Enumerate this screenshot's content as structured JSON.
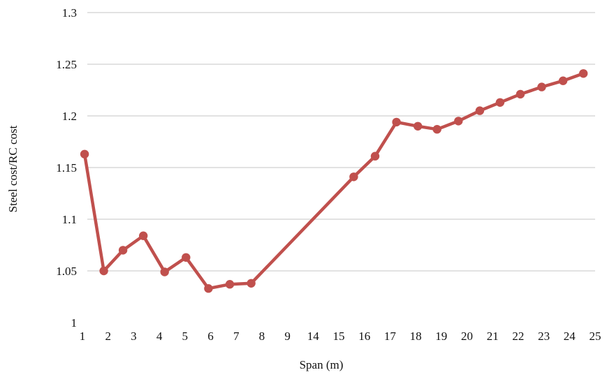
{
  "chart_data": {
    "type": "line",
    "xlabel": "Span (m)",
    "ylabel": "Steel cost/RC cost",
    "ylim": [
      1,
      1.3
    ],
    "y_ticks": [
      "1",
      "1.05",
      "1.1",
      "1.15",
      "1.2",
      "1.25",
      "1.3"
    ],
    "x_ticks": [
      "1",
      "2",
      "3",
      "4",
      "5",
      "6",
      "7",
      "8",
      "9",
      "14",
      "15",
      "16",
      "17",
      "18",
      "19",
      "20",
      "21",
      "22",
      "23",
      "24",
      "25"
    ],
    "grid": "horizontal",
    "colors": {
      "line": "#c0504d",
      "grid": "#d9d9d9"
    },
    "series": [
      {
        "x": [
          1.1,
          2.0,
          2.9,
          3.85,
          4.85,
          5.85,
          6.9,
          7.9,
          8.9,
          13.7,
          14.7,
          15.7,
          16.7,
          17.6,
          18.6,
          19.6,
          20.55,
          21.5,
          22.5,
          23.5,
          24.45
        ],
        "values": [
          1.163,
          1.05,
          1.07,
          1.084,
          1.049,
          1.063,
          1.033,
          1.037,
          1.038,
          1.141,
          1.161,
          1.194,
          1.19,
          1.187,
          1.195,
          1.205,
          1.213,
          1.221,
          1.228,
          1.234,
          1.241
        ]
      }
    ]
  }
}
